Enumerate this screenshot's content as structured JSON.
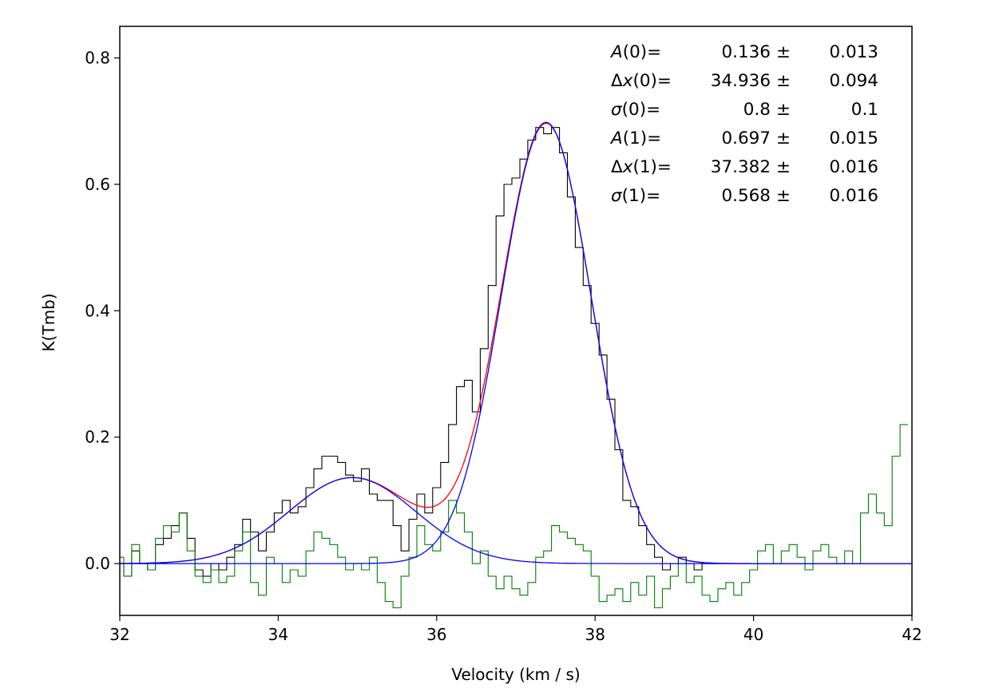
{
  "chart_data": {
    "type": "line",
    "title": "",
    "xlabel": "Velocity (km / s)",
    "ylabel": "K(Tmb)",
    "xlim": [
      32,
      42
    ],
    "ylim": [
      -0.082,
      0.85
    ],
    "xticks": [
      32,
      34,
      36,
      38,
      40,
      42
    ],
    "yticks": [
      0.0,
      0.2,
      0.4,
      0.6,
      0.8
    ],
    "xtick_labels": [
      "32",
      "34",
      "36",
      "38",
      "40",
      "42"
    ],
    "ytick_labels": [
      "0.0",
      "0.2",
      "0.4",
      "0.6",
      "0.8"
    ],
    "grid": false,
    "legend": "none",
    "fit_parameters": [
      {
        "sym": "A",
        "pre": "",
        "idx": "(0)=",
        "value": "0.136",
        "error": "0.013"
      },
      {
        "sym": "x",
        "pre": "Δ",
        "idx": "(0)=",
        "value": "34.936",
        "error": "0.094"
      },
      {
        "sym": "σ",
        "pre": "",
        "idx": "(0)=",
        "value": "0.8",
        "error": "0.1"
      },
      {
        "sym": "A",
        "pre": "",
        "idx": "(1)=",
        "value": "0.697",
        "error": "0.015"
      },
      {
        "sym": "x",
        "pre": "Δ",
        "idx": "(1)=",
        "value": "37.382",
        "error": "0.016"
      },
      {
        "sym": "σ",
        "pre": "",
        "idx": "(1)=",
        "value": "0.568",
        "error": "0.016"
      }
    ],
    "components": [
      {
        "amplitude": 0.136,
        "center": 34.936,
        "sigma": 0.8,
        "color": "#0000ff"
      },
      {
        "amplitude": 0.697,
        "center": 37.382,
        "sigma": 0.568,
        "color": "#0000ff"
      }
    ],
    "total_fit_color": "#ff0000",
    "series": [
      {
        "role": "spectrum",
        "color": "#000000",
        "style": "steps",
        "x": [
          32.0,
          32.1,
          32.2,
          32.3,
          32.4,
          32.5,
          32.6,
          32.7,
          32.8,
          32.9,
          33.0,
          33.1,
          33.2,
          33.3,
          33.4,
          33.5,
          33.6,
          33.7,
          33.8,
          33.9,
          34.0,
          34.1,
          34.2,
          34.3,
          34.4,
          34.5,
          34.6,
          34.7,
          34.8,
          34.9,
          35.0,
          35.1,
          35.2,
          35.3,
          35.4,
          35.5,
          35.6,
          35.7,
          35.8,
          35.9,
          36.0,
          36.1,
          36.2,
          36.3,
          36.4,
          36.5,
          36.6,
          36.7,
          36.8,
          36.9,
          37.0,
          37.1,
          37.2,
          37.3,
          37.4,
          37.5,
          37.6,
          37.7,
          37.8,
          37.9,
          38.0,
          38.1,
          38.2,
          38.3,
          38.4,
          38.5,
          38.6,
          38.7,
          38.8,
          38.9,
          39.0,
          39.1,
          39.2,
          39.3,
          39.4,
          39.5
        ],
        "y": [
          0.0,
          -0.02,
          0.02,
          0.0,
          -0.01,
          0.03,
          0.04,
          0.06,
          0.08,
          0.04,
          -0.01,
          -0.02,
          0.0,
          -0.01,
          0.01,
          0.03,
          0.07,
          0.05,
          0.02,
          0.05,
          0.08,
          0.1,
          0.08,
          0.09,
          0.12,
          0.15,
          0.17,
          0.17,
          0.16,
          0.14,
          0.13,
          0.15,
          0.11,
          0.1,
          0.1,
          0.06,
          0.02,
          0.07,
          0.11,
          0.08,
          0.12,
          0.16,
          0.22,
          0.28,
          0.29,
          0.24,
          0.34,
          0.44,
          0.55,
          0.6,
          0.61,
          0.64,
          0.67,
          0.69,
          0.68,
          0.69,
          0.65,
          0.58,
          0.5,
          0.44,
          0.38,
          0.33,
          0.26,
          0.18,
          0.1,
          0.09,
          0.06,
          0.03,
          0.01,
          -0.01,
          0.0,
          0.01,
          0.0,
          -0.01,
          0.0,
          0.0
        ]
      },
      {
        "role": "residual",
        "color": "#007f00",
        "style": "steps",
        "x": [
          32.0,
          32.1,
          32.2,
          32.3,
          32.4,
          32.5,
          32.6,
          32.7,
          32.8,
          32.9,
          33.0,
          33.1,
          33.2,
          33.3,
          33.4,
          33.5,
          33.6,
          33.7,
          33.8,
          33.9,
          34.0,
          34.1,
          34.2,
          34.3,
          34.4,
          34.5,
          34.6,
          34.7,
          34.8,
          34.9,
          35.0,
          35.1,
          35.2,
          35.3,
          35.4,
          35.5,
          35.6,
          35.7,
          35.8,
          35.9,
          36.0,
          36.1,
          36.2,
          36.3,
          36.4,
          36.5,
          36.6,
          36.7,
          36.8,
          36.9,
          37.0,
          37.1,
          37.2,
          37.3,
          37.4,
          37.5,
          37.6,
          37.7,
          37.8,
          37.9,
          38.0,
          38.1,
          38.2,
          38.3,
          38.4,
          38.5,
          38.6,
          38.7,
          38.8,
          38.9,
          39.0,
          39.1,
          39.2,
          39.3,
          39.4,
          39.5,
          39.6,
          39.7,
          39.8,
          39.9,
          40.0,
          40.1,
          40.2,
          40.3,
          40.4,
          40.5,
          40.6,
          40.7,
          40.8,
          40.9,
          41.0,
          41.1,
          41.2,
          41.3,
          41.4,
          41.5,
          41.6,
          41.7,
          41.8,
          41.9
        ],
        "y": [
          0.01,
          -0.02,
          0.03,
          0.0,
          -0.01,
          0.04,
          0.06,
          0.05,
          0.08,
          0.02,
          -0.02,
          -0.03,
          -0.01,
          -0.03,
          -0.02,
          0.02,
          0.05,
          -0.03,
          -0.05,
          0.01,
          0.0,
          -0.03,
          -0.01,
          -0.02,
          0.02,
          0.05,
          0.04,
          0.03,
          0.01,
          -0.01,
          0.0,
          -0.01,
          0.01,
          -0.03,
          -0.06,
          -0.07,
          -0.02,
          0.01,
          0.06,
          0.03,
          0.02,
          0.05,
          0.1,
          0.08,
          0.05,
          0.0,
          0.02,
          -0.02,
          -0.04,
          -0.02,
          -0.04,
          -0.05,
          -0.03,
          0.01,
          0.02,
          0.06,
          0.05,
          0.04,
          0.03,
          0.02,
          -0.02,
          -0.06,
          -0.05,
          -0.04,
          -0.06,
          -0.03,
          -0.05,
          -0.02,
          -0.07,
          -0.04,
          -0.02,
          0.0,
          -0.03,
          -0.02,
          -0.05,
          -0.06,
          -0.04,
          -0.03,
          -0.05,
          -0.03,
          -0.01,
          0.02,
          0.03,
          0.0,
          0.02,
          0.03,
          0.01,
          -0.01,
          0.02,
          0.03,
          0.01,
          0.0,
          0.02,
          0.0,
          0.08,
          0.11,
          0.08,
          0.06,
          0.17,
          0.22
        ]
      }
    ]
  }
}
